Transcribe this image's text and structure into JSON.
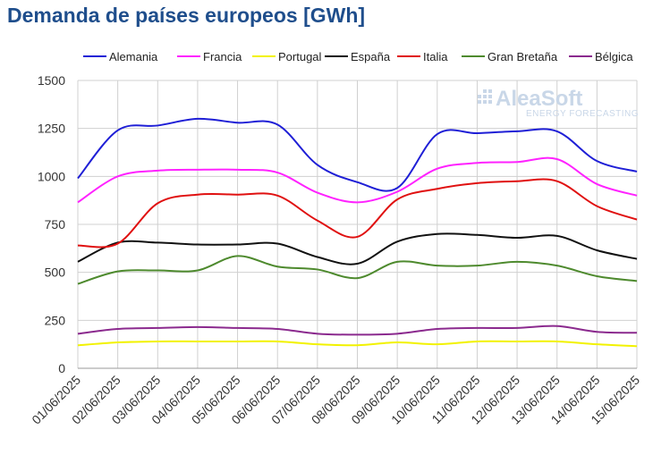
{
  "chart_data": {
    "type": "line",
    "title": "Demanda de países europeos [GWh]",
    "x": [
      "01/06/2025",
      "02/06/2025",
      "03/06/2025",
      "04/06/2025",
      "05/06/2025",
      "06/06/2025",
      "07/06/2025",
      "08/06/2025",
      "09/06/2025",
      "10/06/2025",
      "11/06/2025",
      "12/06/2025",
      "13/06/2025",
      "14/06/2025",
      "15/06/2025"
    ],
    "ylim": [
      0,
      1500
    ],
    "yticks": [
      0,
      250,
      500,
      750,
      1000,
      1250,
      1500
    ],
    "grid": true,
    "legend": "top",
    "series": [
      {
        "name": "Alemania",
        "color": "#1f1fd6",
        "values": [
          990,
          1240,
          1265,
          1300,
          1280,
          1270,
          1060,
          970,
          940,
          1220,
          1225,
          1235,
          1235,
          1080,
          1025
        ]
      },
      {
        "name": "Francia",
        "color": "#ff22ff",
        "values": [
          865,
          1000,
          1030,
          1035,
          1035,
          1020,
          915,
          865,
          920,
          1040,
          1070,
          1075,
          1090,
          960,
          900
        ]
      },
      {
        "name": "Portugal",
        "color": "#f2f200",
        "values": [
          120,
          135,
          140,
          140,
          140,
          140,
          125,
          120,
          135,
          125,
          140,
          140,
          140,
          125,
          115
        ]
      },
      {
        "name": "España",
        "color": "#111111",
        "values": [
          555,
          655,
          655,
          645,
          645,
          650,
          580,
          545,
          660,
          700,
          695,
          680,
          690,
          615,
          570
        ]
      },
      {
        "name": "Italia",
        "color": "#e01010",
        "values": [
          640,
          650,
          860,
          905,
          905,
          900,
          770,
          685,
          880,
          935,
          965,
          975,
          975,
          845,
          775
        ]
      },
      {
        "name": "Gran Bretaña",
        "color": "#4e8a2e",
        "values": [
          440,
          505,
          510,
          510,
          585,
          530,
          515,
          470,
          555,
          535,
          535,
          555,
          535,
          480,
          455
        ]
      },
      {
        "name": "Bélgica",
        "color": "#8b2a8e",
        "values": [
          180,
          205,
          210,
          215,
          210,
          205,
          180,
          175,
          180,
          205,
          210,
          210,
          220,
          190,
          185
        ]
      }
    ]
  },
  "logo": {
    "name": "AleaSoft",
    "tagline": "ENERGY FORECASTING"
  }
}
